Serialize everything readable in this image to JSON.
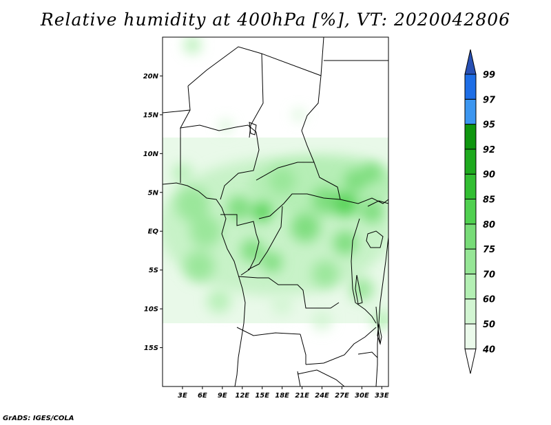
{
  "title": "Relative humidity at 400hPa [%], VT: 2020042806",
  "credit": "GrADS: IGES/COLA",
  "map": {
    "lon_range": [
      0,
      34
    ],
    "lat_range": [
      -20,
      25
    ],
    "x_tick_labels": [
      "3E",
      "6E",
      "9E",
      "12E",
      "15E",
      "18E",
      "21E",
      "24E",
      "27E",
      "30E",
      "33E"
    ],
    "y_tick_labels": [
      "20N",
      "15N",
      "10N",
      "5N",
      "EQ",
      "5S",
      "10S",
      "15S"
    ],
    "x_tick_values": [
      3,
      6,
      9,
      12,
      15,
      18,
      21,
      24,
      27,
      30,
      33
    ],
    "y_tick_values": [
      20,
      15,
      10,
      5,
      0,
      -5,
      -10,
      -15
    ]
  },
  "colorbar": {
    "labels": [
      "40",
      "50",
      "60",
      "70",
      "75",
      "80",
      "85",
      "90",
      "92",
      "95",
      "97",
      "99"
    ],
    "colors": [
      "#ffffff",
      "#ebfaeb",
      "#d2f5d2",
      "#b4f0b4",
      "#96e696",
      "#78dc78",
      "#50d050",
      "#32be32",
      "#1eaa1e",
      "#0f960f",
      "#3c96f0",
      "#1e6ee6",
      "#2850b4"
    ]
  },
  "humidity_blobs": [
    {
      "lon": 4.5,
      "lat": 3.5,
      "r": 2.6,
      "level": 4
    },
    {
      "lon": 3.0,
      "lat": 7.5,
      "r": 1.5,
      "level": 3
    },
    {
      "lon": 6.5,
      "lat": 0.0,
      "r": 2.4,
      "level": 4
    },
    {
      "lon": 5.5,
      "lat": -4.5,
      "r": 2.3,
      "level": 4
    },
    {
      "lon": 8.5,
      "lat": -9.0,
      "r": 1.8,
      "level": 3
    },
    {
      "lon": 11.5,
      "lat": 3.0,
      "r": 1.8,
      "level": 5
    },
    {
      "lon": 15.0,
      "lat": 2.5,
      "r": 1.5,
      "level": 6
    },
    {
      "lon": 13.5,
      "lat": -2.5,
      "r": 1.7,
      "level": 5
    },
    {
      "lon": 16.5,
      "lat": -4.0,
      "r": 1.5,
      "level": 5
    },
    {
      "lon": 18.0,
      "lat": 6.5,
      "r": 2.0,
      "level": 4
    },
    {
      "lon": 21.5,
      "lat": 0.5,
      "r": 2.2,
      "level": 5
    },
    {
      "lon": 24.5,
      "lat": 4.0,
      "r": 2.0,
      "level": 5
    },
    {
      "lon": 27.5,
      "lat": 3.5,
      "r": 1.8,
      "level": 6
    },
    {
      "lon": 29.0,
      "lat": 6.5,
      "r": 1.7,
      "level": 5
    },
    {
      "lon": 31.5,
      "lat": 7.5,
      "r": 1.5,
      "level": 5
    },
    {
      "lon": 31.5,
      "lat": 2.5,
      "r": 1.7,
      "level": 5
    },
    {
      "lon": 27.5,
      "lat": -1.5,
      "r": 1.8,
      "level": 5
    },
    {
      "lon": 24.5,
      "lat": -5.5,
      "r": 2.0,
      "level": 4
    },
    {
      "lon": 30.0,
      "lat": -7.5,
      "r": 1.8,
      "level": 4
    },
    {
      "lon": 33.0,
      "lat": -11.5,
      "r": 1.5,
      "level": 3
    },
    {
      "lon": 18.0,
      "lat": -9.5,
      "r": 1.6,
      "level": 2
    },
    {
      "lon": 24.0,
      "lat": -11.5,
      "r": 1.5,
      "level": 2
    },
    {
      "lon": 4.5,
      "lat": 24.0,
      "r": 1.3,
      "level": 3
    },
    {
      "lon": 9.5,
      "lat": 13.5,
      "r": 1.0,
      "level": 2
    },
    {
      "lon": 20.5,
      "lat": 15.0,
      "r": 0.9,
      "level": 2
    }
  ]
}
